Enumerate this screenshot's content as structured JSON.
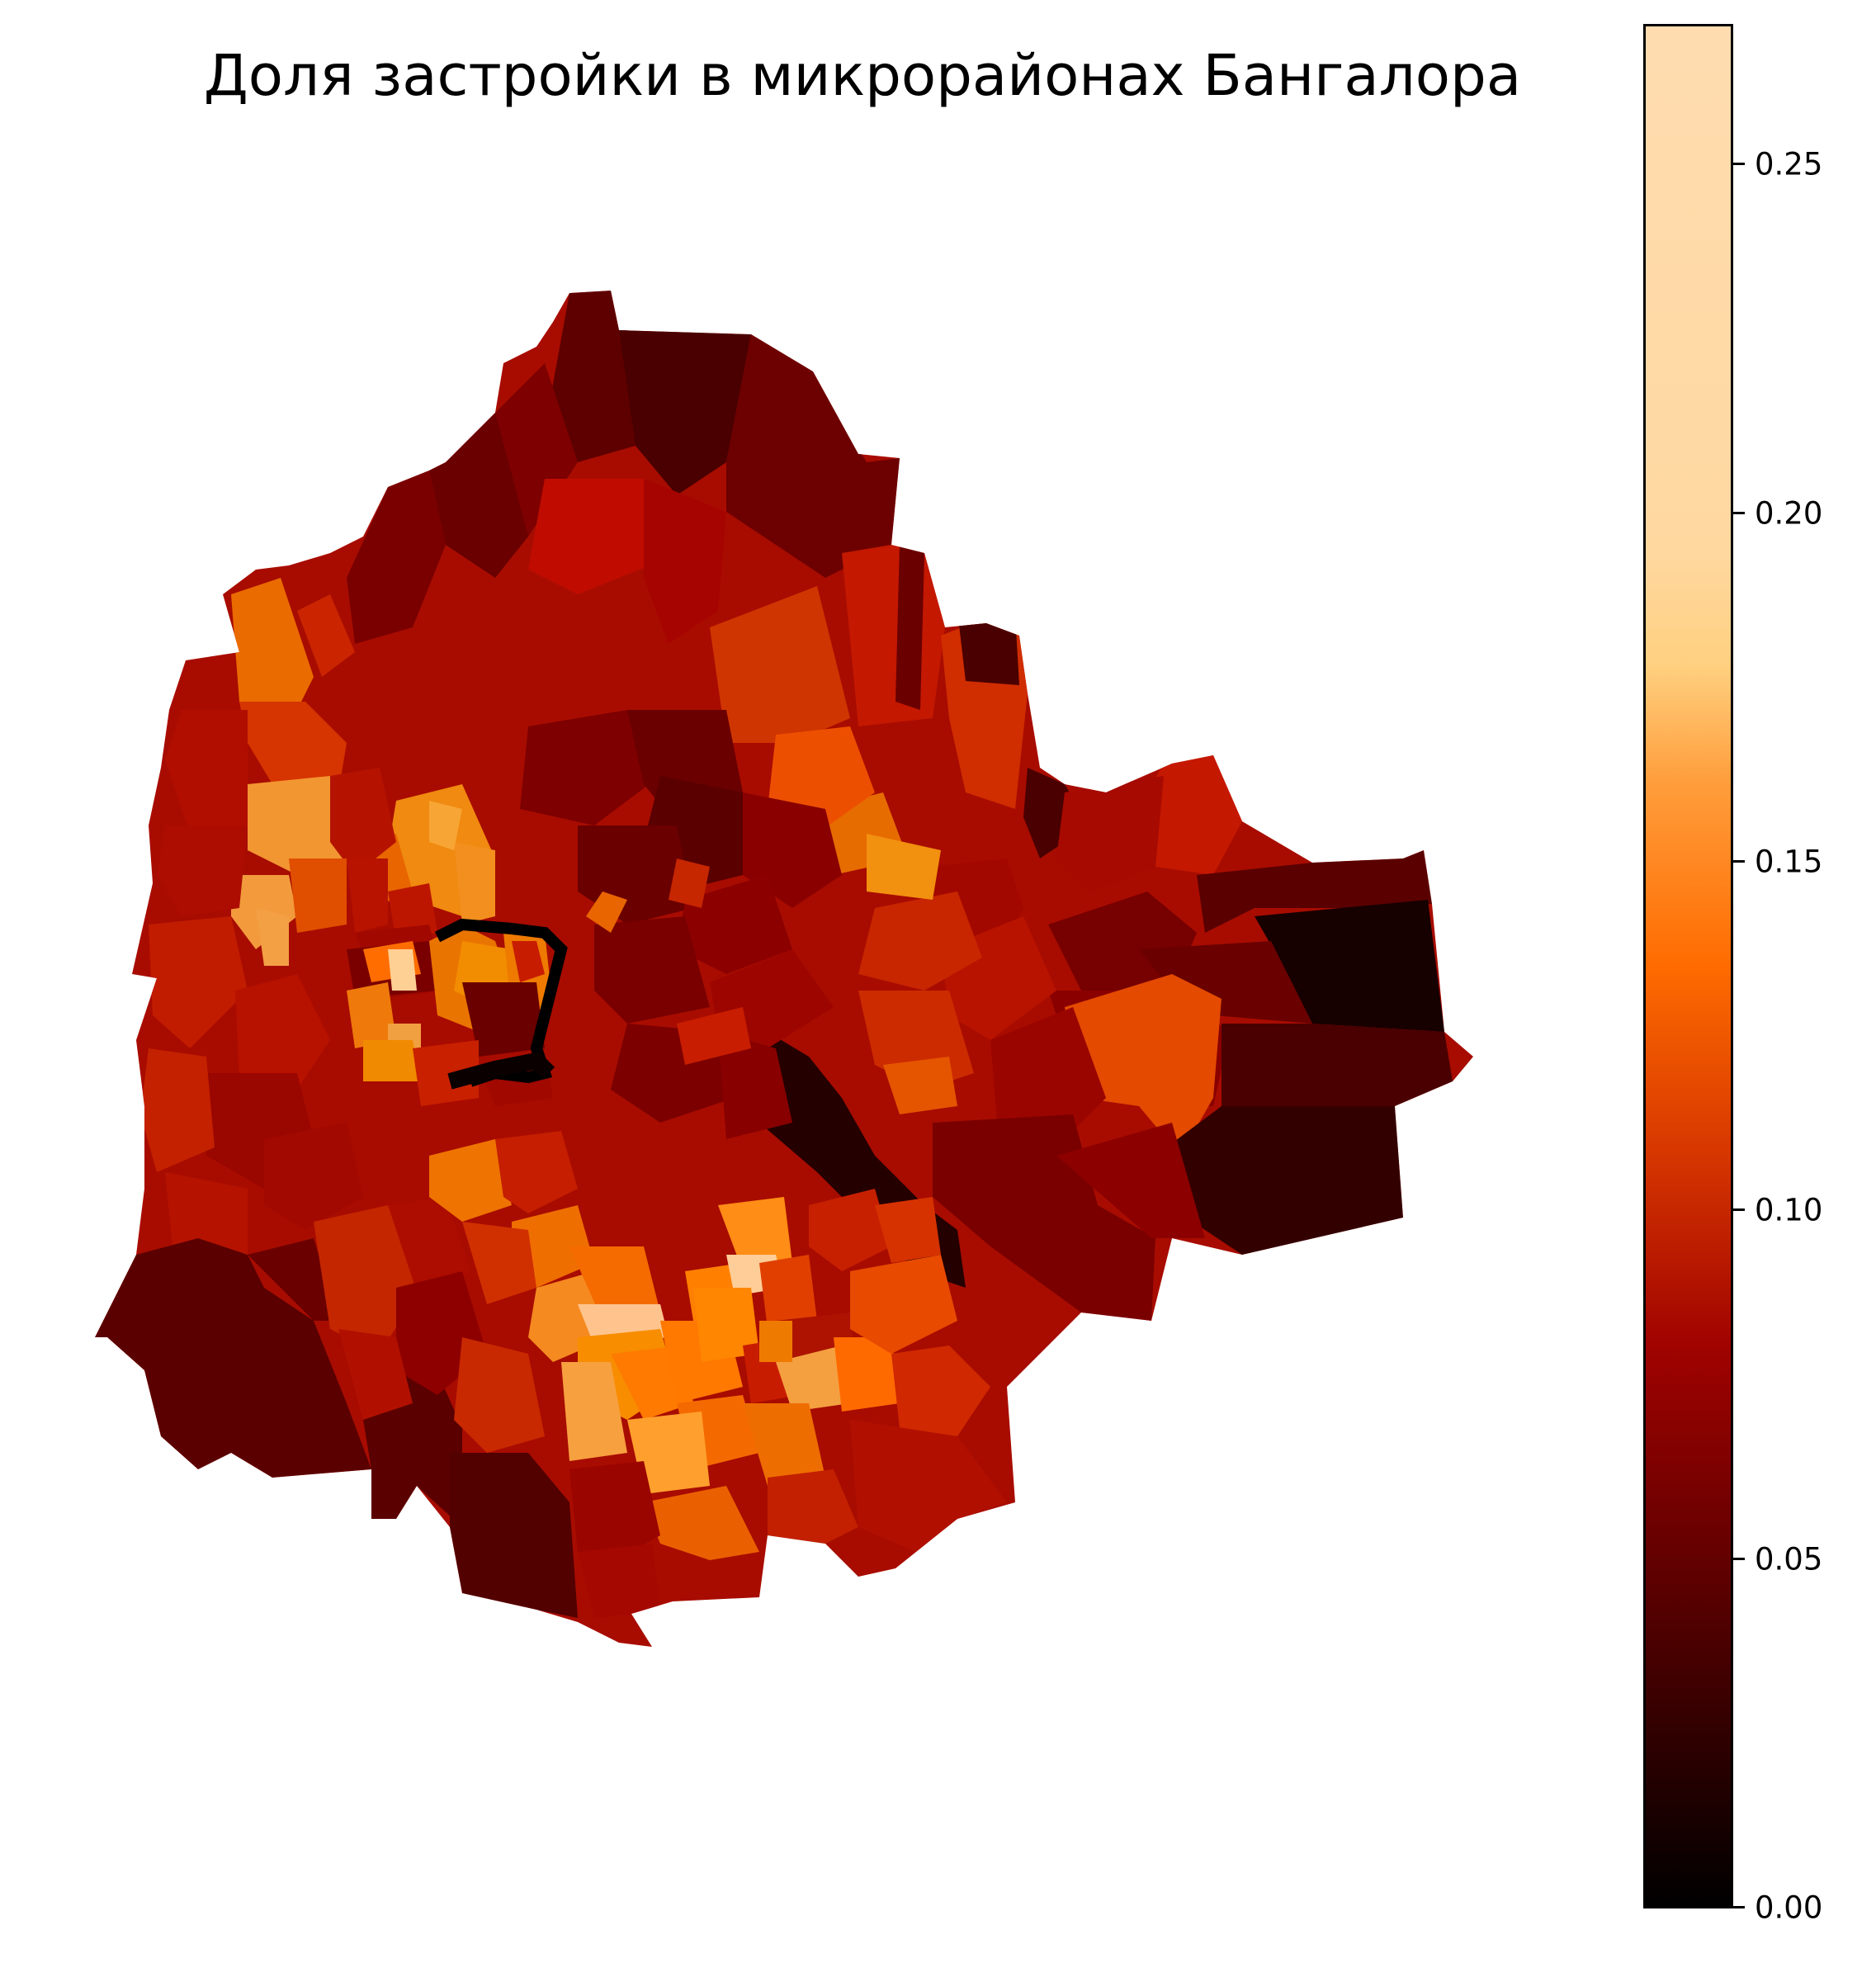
{
  "title": "Доля застройки в микрорайонах Бангалора",
  "colorbar": {
    "min": 0.0,
    "max": 0.27,
    "colormap": "gist_heat",
    "ticks": [
      "0.00",
      "0.05",
      "0.10",
      "0.15",
      "0.20",
      "0.25"
    ]
  },
  "map": {
    "subject": "Bangalore micro-districts (wards)",
    "value_range_shown": [
      0.0,
      0.27
    ]
  }
}
